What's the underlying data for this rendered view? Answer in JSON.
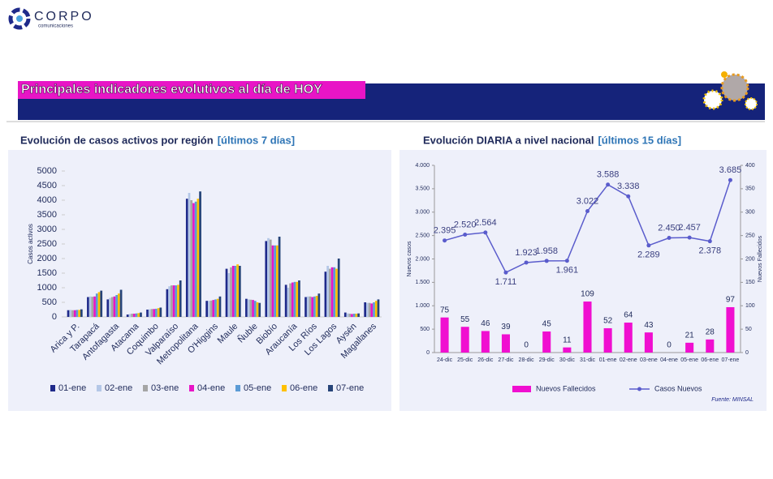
{
  "logo": {
    "name": "CORPO",
    "tagline": "comunicaciones"
  },
  "banner": {
    "title": "Principales indicadores evolutivos al día de HOY"
  },
  "chart_data": [
    {
      "type": "bar",
      "title": "Evolución de casos activos por región",
      "subtitle": "[últimos 7 días]",
      "y_label": "Casos activos",
      "categories": [
        "Arica y P.",
        "Tarapacá",
        "Antofagasta",
        "Atacama",
        "Coquimbo",
        "Valparaíso",
        "Metropolitana",
        "O'Higgins",
        "Maule",
        "Ñuble",
        "Biobío",
        "Araucanía",
        "Los Ríos",
        "Los Lagos",
        "Aysén",
        "Magallanes"
      ],
      "series": [
        {
          "name": "01-ene",
          "color": "#1f2a8a",
          "values": [
            230,
            680,
            600,
            80,
            250,
            950,
            4050,
            550,
            1650,
            620,
            2600,
            1100,
            680,
            1550,
            150,
            500
          ]
        },
        {
          "name": "02-ene",
          "color": "#b4c7e7",
          "values": [
            240,
            700,
            650,
            100,
            260,
            1050,
            4250,
            550,
            1500,
            600,
            2700,
            1000,
            700,
            1750,
            120,
            480
          ]
        },
        {
          "name": "03-ene",
          "color": "#a5a5a5",
          "values": [
            230,
            690,
            680,
            110,
            270,
            1080,
            4000,
            560,
            1700,
            590,
            2650,
            1150,
            700,
            1650,
            110,
            480
          ]
        },
        {
          "name": "04-ene",
          "color": "#e815c6",
          "values": [
            230,
            700,
            700,
            110,
            270,
            1080,
            3900,
            580,
            1750,
            580,
            2450,
            1180,
            680,
            1700,
            100,
            460
          ]
        },
        {
          "name": "05-ene",
          "color": "#5b9bd5",
          "values": [
            240,
            800,
            750,
            120,
            280,
            1080,
            3950,
            600,
            1750,
            550,
            2450,
            1200,
            700,
            1700,
            110,
            500
          ]
        },
        {
          "name": "06-ene",
          "color": "#ffc000",
          "values": [
            240,
            850,
            800,
            130,
            300,
            1100,
            4050,
            620,
            1800,
            500,
            2450,
            1200,
            720,
            1650,
            110,
            550
          ]
        },
        {
          "name": "07-ene",
          "color": "#264478",
          "values": [
            260,
            900,
            930,
            150,
            320,
            1250,
            4300,
            700,
            1750,
            480,
            2750,
            1250,
            800,
            2000,
            120,
            600
          ]
        }
      ],
      "ylim": [
        0,
        5000
      ],
      "yticks": [
        0,
        500,
        1000,
        1500,
        2000,
        2500,
        3000,
        3500,
        4000,
        4500,
        5000
      ],
      "grid": false,
      "legend": "bottom"
    },
    {
      "type": "combo",
      "title": "Evolución DIARIA a nivel nacional",
      "subtitle": "[últimos 15 días]",
      "y_label": "Nuevos casos",
      "y2_label": "Nuevos Fallecidos",
      "categories": [
        "24-dic",
        "25-dic",
        "26-dic",
        "27-dic",
        "28-dic",
        "29-dic",
        "30-dic",
        "31-dic",
        "01-ene",
        "02-ene",
        "03-ene",
        "04-ene",
        "05-ene",
        "06-ene",
        "07-ene"
      ],
      "series": [
        {
          "name": "Nuevos Fallecidos",
          "type": "bar",
          "axis": "y2",
          "color": "#f00fd0",
          "values": [
            75,
            55,
            46,
            39,
            0,
            45,
            11,
            109,
            52,
            64,
            43,
            0,
            21,
            28,
            97
          ]
        },
        {
          "name": "Casos Nuevos",
          "type": "line",
          "color": "#5a5ccc",
          "values": [
            2395,
            2520,
            2564,
            1711,
            1923,
            1958,
            1961,
            3022,
            3588,
            3338,
            2289,
            2450,
            2457,
            2378,
            3685
          ],
          "value_labels": [
            "2.395",
            "2.520",
            "2.564",
            "1.711",
            "1.923",
            "1.958",
            "1.961",
            "3.022",
            "3.588",
            "3.338",
            "2.289",
            "2.450",
            "2.457",
            "2.378",
            "3.685"
          ]
        }
      ],
      "ylim": [
        0,
        4000
      ],
      "yticks": [
        0,
        {
          "value": 500,
          "label": "500"
        },
        {
          "value": 1000,
          "label": "1.000"
        },
        {
          "value": 1500,
          "label": "1.500"
        },
        {
          "value": 2000,
          "label": "2.000"
        },
        {
          "value": 2500,
          "label": "2.500"
        },
        {
          "value": 3000,
          "label": "3.000"
        },
        {
          "value": 3500,
          "label": "3.500"
        },
        {
          "value": 4000,
          "label": "4.000"
        }
      ],
      "y2lim": [
        0,
        400
      ],
      "y2ticks": [
        0,
        50,
        100,
        150,
        200,
        250,
        300,
        350,
        400
      ],
      "grid": false,
      "legend": "bottom",
      "source": "Fuente: MINSAL"
    }
  ]
}
